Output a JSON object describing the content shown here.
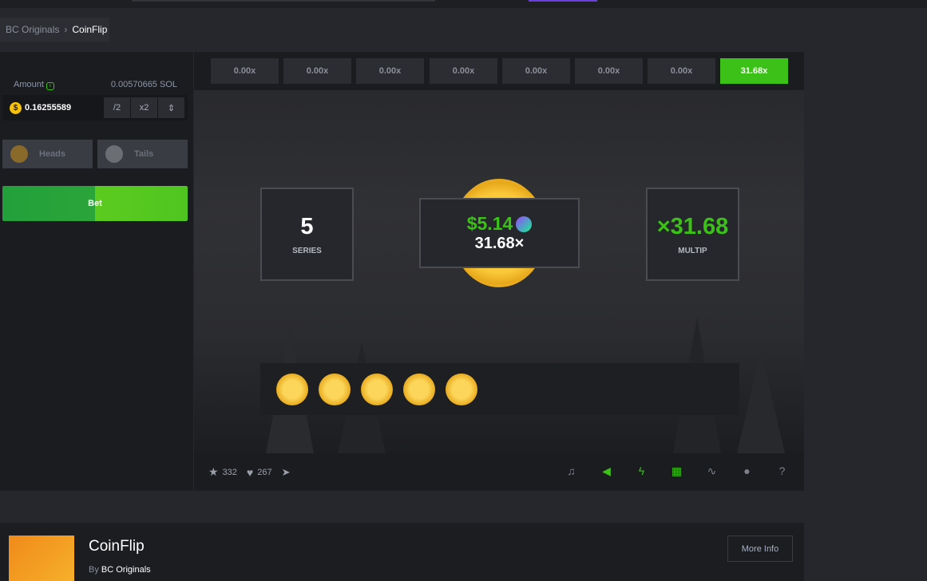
{
  "breadcrumb": {
    "parent": "BC Originals",
    "current": "CoinFlip"
  },
  "bet_panel": {
    "amount_label": "Amount",
    "amount_conversion": "0.00570665 SOL",
    "amount_value": "0.16255589",
    "half": "/2",
    "double": "x2",
    "heads": "Heads",
    "tails": "Tails",
    "bet": "Bet"
  },
  "history": [
    "0.00x",
    "0.00x",
    "0.00x",
    "0.00x",
    "0.00x",
    "0.00x",
    "0.00x",
    "31.68x"
  ],
  "game": {
    "series_value": "5",
    "series_label": "SERIES",
    "win_amount": "$5.14",
    "win_multiplier": "31.68×",
    "multip_value": "×31.68",
    "multip_label": "MULTIP",
    "coins_count_shown": 5
  },
  "footer": {
    "stars": "332",
    "likes": "267"
  },
  "info": {
    "title": "CoinFlip",
    "by_label": "By",
    "by_name": "BC Originals",
    "more_info": "More Info"
  },
  "colors": {
    "accent": "#3bc117",
    "coin": "#f5c20c"
  }
}
